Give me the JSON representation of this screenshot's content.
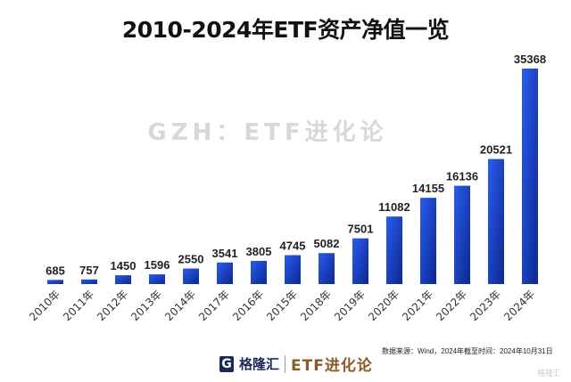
{
  "chart_data": {
    "type": "bar",
    "title": "2010-2024年ETF资产净值一览",
    "categories": [
      "2010年",
      "2011年",
      "2012年",
      "2013年",
      "2014年",
      "2017年",
      "2016年",
      "2015年",
      "2018年",
      "2019年",
      "2020年",
      "2021年",
      "2022年",
      "2023年",
      "2024年"
    ],
    "values": [
      685,
      757,
      1450,
      1596,
      2550,
      3541,
      3805,
      4745,
      5082,
      7501,
      11082,
      14155,
      16136,
      20521,
      35368
    ],
    "xlabel": "",
    "ylabel": "",
    "ylim": [
      0,
      35368
    ],
    "grid": false,
    "bar_color": "#1a44d6",
    "bar_color_dark": "#0d2a9a"
  },
  "watermark": "GZH：ETF进化论",
  "source": "数据来源：Wind，2024年截至时间：2024年10月31日",
  "logo": {
    "mark": "G",
    "brand": "格隆汇",
    "name": "ETF进化论"
  },
  "corner": "格隆汇"
}
